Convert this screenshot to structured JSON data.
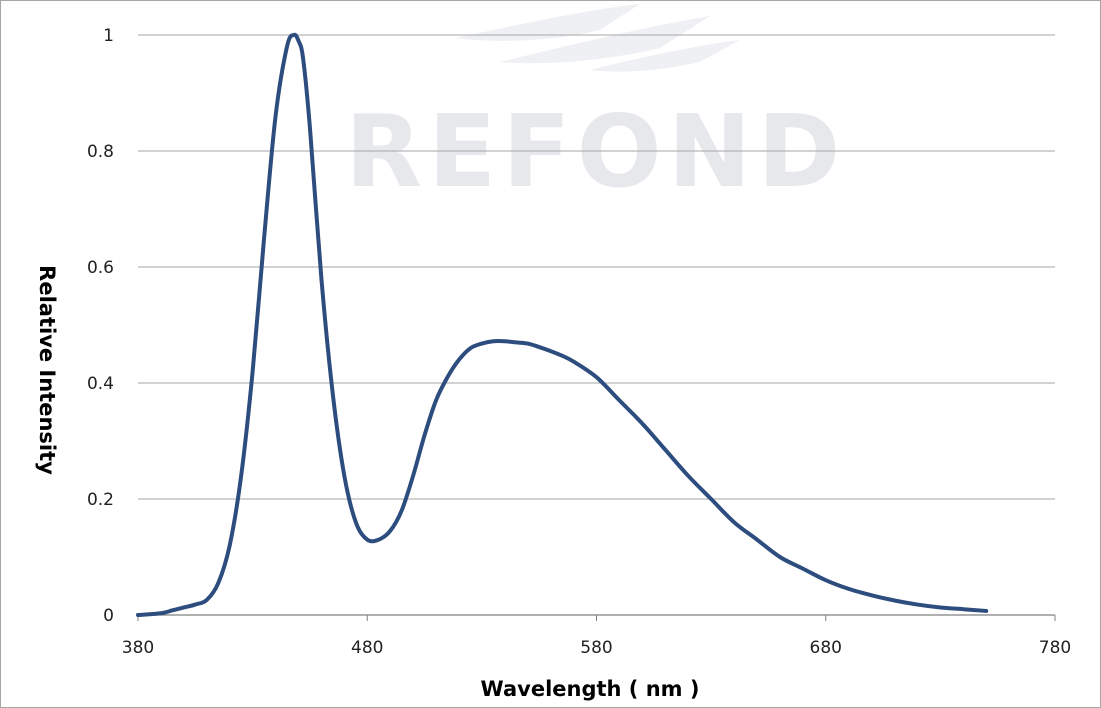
{
  "watermark": {
    "text": "REFOND"
  },
  "chart_data": {
    "type": "line",
    "xlabel": "Wavelength ( nm )",
    "ylabel": "Relative  Intensity",
    "xlim": [
      380,
      780
    ],
    "ylim": [
      0,
      1
    ],
    "x_ticks": [
      "380",
      "480",
      "580",
      "680",
      "780"
    ],
    "y_ticks": [
      "0",
      "0.2",
      "0.4",
      "0.6",
      "0.8",
      "1"
    ],
    "grid": {
      "horizontal": true,
      "vertical": false
    },
    "colors": {
      "line": "#2e4d7f",
      "grid": "#a6a6a6",
      "axis": "#808080"
    },
    "series": [
      {
        "x": [
          380,
          390,
          395,
          400,
          405,
          410,
          415,
          420,
          425,
          430,
          435,
          440,
          445,
          448,
          450,
          452,
          455,
          460,
          465,
          470,
          475,
          480,
          485,
          490,
          495,
          500,
          505,
          510,
          515,
          520,
          525,
          530,
          535,
          540,
          545,
          550,
          555,
          560,
          565,
          570,
          580,
          590,
          600,
          610,
          620,
          630,
          640,
          650,
          660,
          670,
          680,
          690,
          700,
          710,
          720,
          730,
          740,
          750
        ],
        "y": [
          0.0,
          0.003,
          0.008,
          0.013,
          0.018,
          0.026,
          0.055,
          0.12,
          0.24,
          0.42,
          0.65,
          0.86,
          0.98,
          1.0,
          0.99,
          0.96,
          0.84,
          0.58,
          0.38,
          0.24,
          0.16,
          0.13,
          0.13,
          0.145,
          0.18,
          0.24,
          0.31,
          0.37,
          0.41,
          0.44,
          0.46,
          0.468,
          0.472,
          0.472,
          0.47,
          0.468,
          0.462,
          0.455,
          0.447,
          0.437,
          0.41,
          0.37,
          0.33,
          0.285,
          0.24,
          0.2,
          0.16,
          0.13,
          0.1,
          0.08,
          0.06,
          0.045,
          0.034,
          0.025,
          0.018,
          0.013,
          0.01,
          0.007
        ]
      }
    ]
  }
}
